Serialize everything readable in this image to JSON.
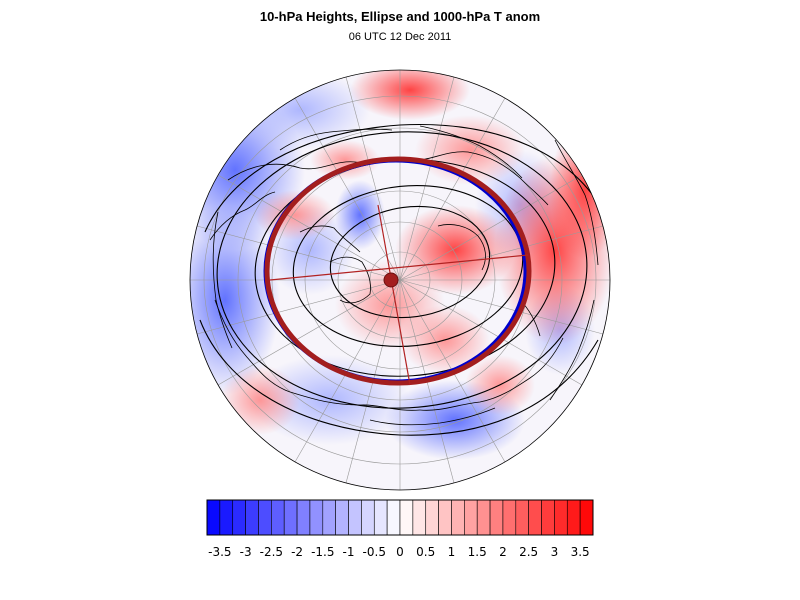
{
  "title": "10-hPa Heights, Ellipse and 1000-hPa T anom",
  "subtitle": "06 UTC 12 Dec 2011",
  "colors": {
    "neg_max": "#0000ff",
    "pos_max": "#ff0000",
    "neutral": "#ffffff",
    "ellipse_blue": "#0000cc",
    "ellipse_red": "#a31e1e",
    "contour": "#000000"
  },
  "colorbar": {
    "min": -3.75,
    "max": 3.75,
    "step": 0.25,
    "labels": [
      "-3.5",
      "-3",
      "-2.5",
      "-2",
      "-1.5",
      "-1",
      "-0.5",
      "0",
      "0.5",
      "1",
      "1.5",
      "2",
      "2.5",
      "3",
      "3.5"
    ],
    "label_values": [
      -3.5,
      -3,
      -2.5,
      -2,
      -1.5,
      -1,
      -0.5,
      0,
      0.5,
      1,
      1.5,
      2,
      2.5,
      3,
      3.5
    ]
  }
}
